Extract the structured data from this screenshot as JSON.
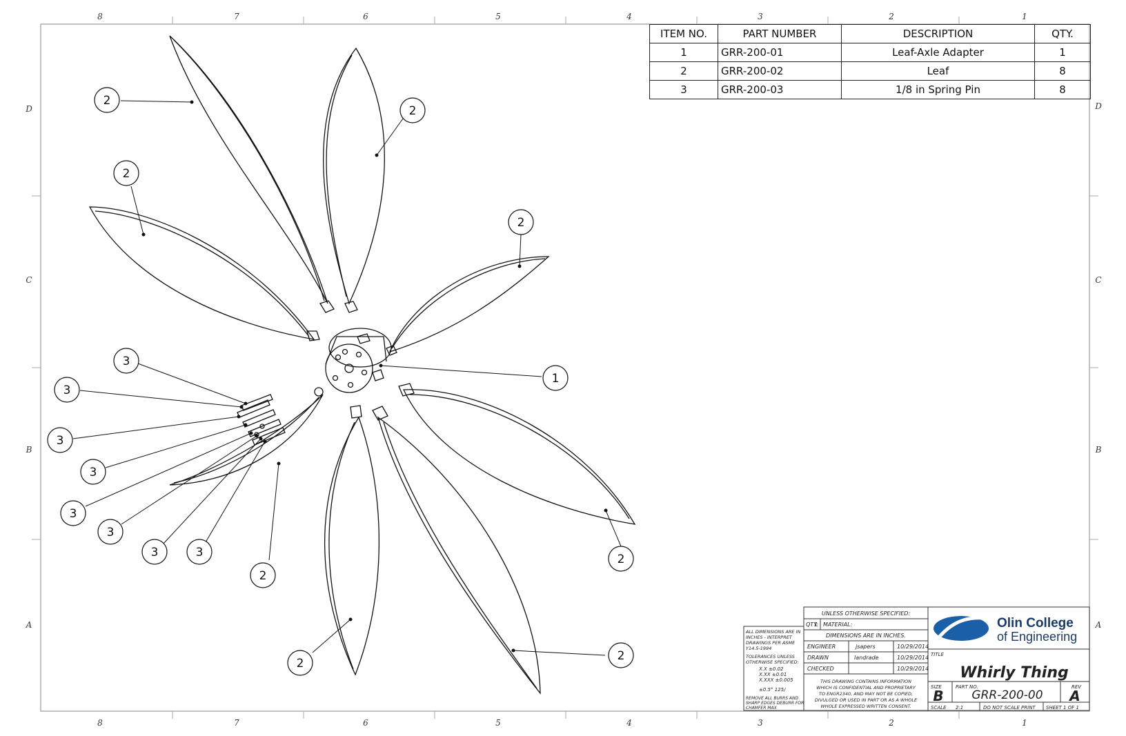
{
  "border": {
    "top_columns": [
      "8",
      "7",
      "6",
      "5",
      "4",
      "3",
      "2",
      "1"
    ],
    "bottom_columns": [
      "8",
      "7",
      "6",
      "5",
      "4",
      "3",
      "2",
      "1"
    ],
    "left_rows": [
      "D",
      "C",
      "B",
      "A"
    ],
    "right_rows": [
      "D",
      "C",
      "B",
      "A"
    ]
  },
  "bom": {
    "headers": [
      "ITEM NO.",
      "PART NUMBER",
      "DESCRIPTION",
      "QTY."
    ],
    "rows": [
      {
        "item": "1",
        "part": "GRR-200-01",
        "desc": "Leaf-Axle Adapter",
        "qty": "1"
      },
      {
        "item": "2",
        "part": "GRR-200-02",
        "desc": "Leaf",
        "qty": "8"
      },
      {
        "item": "3",
        "part": "GRR-200-03",
        "desc": "1/8 in Spring Pin",
        "qty": "8"
      }
    ]
  },
  "balloons": [
    "2",
    "2",
    "2",
    "2",
    "1",
    "3",
    "3",
    "3",
    "3",
    "3",
    "3",
    "3",
    "3",
    "2",
    "2",
    "2",
    "2"
  ],
  "title_block": {
    "unless_specified": "UNLESS OTHERWISE SPECIFIED:",
    "qty_label": "QTY:",
    "qty_value": "1",
    "material_label": "MATERIAL:",
    "dimensions_note": "DIMENSIONS ARE IN INCHES.",
    "engineer_label": "ENGINEER",
    "engineer_name": "jsapers",
    "engineer_date": "10/29/2014",
    "drawn_label": "DRAWN",
    "drawn_name": "landrade",
    "drawn_date": "10/29/2014",
    "checked_label": "CHECKED",
    "checked_date": "10/29/2014",
    "left_notes": [
      "ALL DIMENSIONS ARE IN",
      "INCHES - INTERPRET",
      "DRAWINGS PER ASME",
      "Y14.5-1994",
      "TOLERANCES UNLESS",
      "OTHERWISE SPECIFIED:",
      "X.X    ±0.02",
      "X.XX   ±0.01",
      "X.XXX  ±0.005",
      "±0.5°   125/",
      "REMOVE ALL BURRS AND",
      "SHARP EDGES DEBURR FOR",
      "CHAMFER MAX"
    ],
    "confidential": [
      "THIS DRAWING CONTAINS INFORMATION",
      "WHICH IS CONFIDENTIAL AND PROPRIETARY",
      "TO ENGR2340, AND MAY NOT BE COPIED,",
      "DIVULGED OR USED IN PART OR AS A WHOLE",
      "WHOLE EXPRESSED WRITTEN CONSENT."
    ],
    "logo_line1": "Olin College",
    "logo_line2": "of Engineering",
    "title_label": "TITLE",
    "title": "Whirly Thing",
    "size_label": "SIZE",
    "size": "B",
    "part_no_label": "PART NO.",
    "part_no": "GRR-200-00",
    "rev_label": "REV",
    "rev": "A",
    "scale_label": "SCALE",
    "scale": "2:1",
    "do_not_scale": "DO NOT SCALE PRINT",
    "sheet": "SHEET 1 OF 1"
  },
  "colors": {
    "line": "#111111",
    "frame": "#999999",
    "logo_blue": "#1a5fa8"
  }
}
